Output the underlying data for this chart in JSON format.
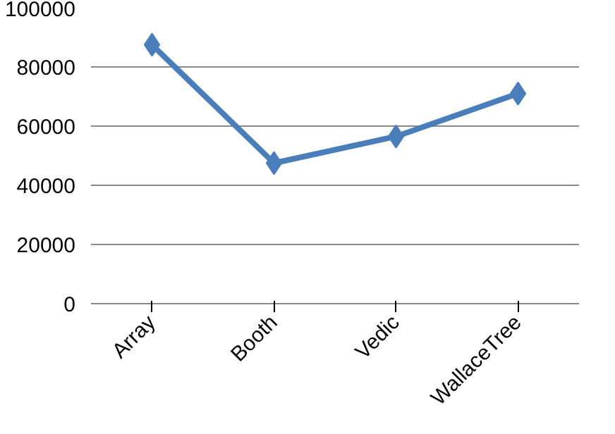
{
  "chart_data": {
    "type": "line",
    "categories": [
      "Array",
      "Booth",
      "Vedic",
      "WallaceTree"
    ],
    "series": [
      {
        "color": "#4a7ebb",
        "values": [
          87500,
          47500,
          56500,
          71000
        ]
      }
    ],
    "ylim": [
      0,
      100000
    ],
    "yticks": [
      0,
      20000,
      40000,
      60000,
      80000,
      100000
    ],
    "grid": "y",
    "marker": "diamond",
    "line_style": "solid"
  }
}
